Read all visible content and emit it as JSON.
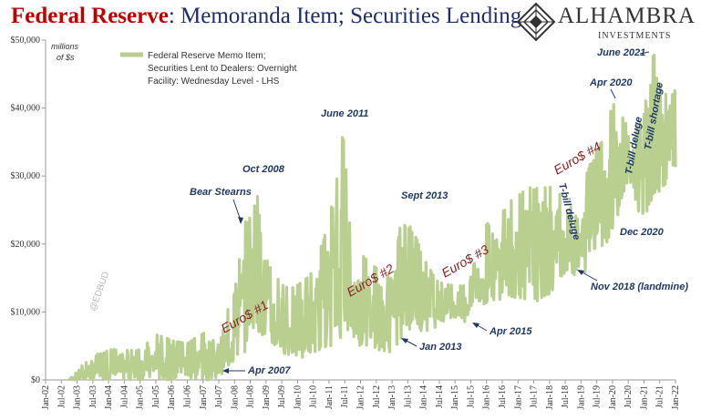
{
  "title": {
    "lead": "Federal Reserve",
    "rest": ": Memoranda Item; Securities Lending"
  },
  "logo": {
    "name": "ALHAMBRA",
    "sub": "INVESTMENTS",
    "icon": "alhambra-diamond-logo"
  },
  "watermark": "@EDBUD",
  "colors": {
    "series": "#b9cf8f",
    "annotation": "#1f3864",
    "euro": "#8b2020",
    "title_lead": "#c00000",
    "title_rest": "#1f2d6e"
  },
  "chart_data": {
    "type": "area",
    "units_label": [
      "millions",
      "of $s"
    ],
    "legend": [
      "Federal Reserve Memo Item;",
      "Securities Lent to Dealers: Overnight",
      "Facility: Wednesday Level - LHS"
    ],
    "x_start": "2002-01",
    "x_end": "2022-01",
    "xlim": [
      2002.0,
      2022.0
    ],
    "ylim": [
      0,
      50000
    ],
    "y_ticks": [
      "$0",
      "$10,000",
      "$20,000",
      "$30,000",
      "$40,000",
      "$50,000"
    ],
    "x_ticks": [
      "Jan-02",
      "Jul-02",
      "Jan-03",
      "Jul-03",
      "Jan-04",
      "Jul-04",
      "Jan-05",
      "Jul-05",
      "Jan-06",
      "Jul-06",
      "Jan-07",
      "Jul-07",
      "Jan-08",
      "Jul-08",
      "Jan-09",
      "Jul-09",
      "Jan-10",
      "Jul-10",
      "Jan-11",
      "Jul-11",
      "Jan-12",
      "Jul-12",
      "Jan-13",
      "Jul-13",
      "Jan-14",
      "Jul-14",
      "Jan-15",
      "Jul-15",
      "Jan-16",
      "Jul-16",
      "Jan-17",
      "Jul-17",
      "Jan-18",
      "Jul-18",
      "Jan-19",
      "Jul-19",
      "Jan-20",
      "Jul-20",
      "Jan-21",
      "Jul-21",
      "Jan-22"
    ],
    "series": [
      {
        "name": "Federal Reserve Memo Item; Securities Lent to Dealers: Overnight Facility: Wednesday Level - LHS",
        "envelope": {
          "x": [
            2002.75,
            2003.0,
            2003.5,
            2004.0,
            2004.5,
            2005.0,
            2005.5,
            2006.0,
            2006.5,
            2007.0,
            2007.25,
            2007.5,
            2008.0,
            2008.3,
            2008.5,
            2008.8,
            2009.0,
            2009.5,
            2010.0,
            2010.5,
            2011.0,
            2011.2,
            2011.45,
            2011.7,
            2012.0,
            2012.5,
            2013.0,
            2013.3,
            2013.7,
            2014.0,
            2014.5,
            2015.0,
            2015.3,
            2015.6,
            2016.0,
            2016.5,
            2017.0,
            2017.5,
            2018.0,
            2018.3,
            2018.6,
            2018.9,
            2019.2,
            2019.5,
            2019.8,
            2020.0,
            2020.3,
            2020.6,
            2020.95,
            2021.2,
            2021.45,
            2021.7,
            2021.9,
            2022.0
          ],
          "high": [
            0,
            1500,
            3500,
            4500,
            4500,
            4500,
            7000,
            6000,
            5500,
            7000,
            5500,
            7000,
            13000,
            23500,
            24000,
            29000,
            18000,
            14000,
            14000,
            16000,
            24000,
            28000,
            37500,
            20000,
            19000,
            17000,
            15000,
            24000,
            22000,
            18000,
            14500,
            14000,
            14000,
            17000,
            23000,
            25000,
            28000,
            28500,
            29000,
            28000,
            26000,
            24000,
            31000,
            34000,
            36000,
            41500,
            39000,
            37000,
            38000,
            47000,
            49000,
            42000,
            45000,
            42000
          ],
          "low": [
            0,
            0,
            0,
            0,
            0,
            0,
            0,
            0,
            0,
            0,
            0,
            500,
            2500,
            3500,
            8000,
            7000,
            5000,
            4000,
            3000,
            4000,
            5000,
            4500,
            7000,
            6000,
            5000,
            4500,
            4000,
            5000,
            8000,
            7000,
            8000,
            9000,
            8000,
            12000,
            11000,
            12000,
            12000,
            11500,
            12000,
            15000,
            16000,
            15000,
            16000,
            19000,
            20000,
            22000,
            26000,
            28000,
            23000,
            26000,
            27000,
            29000,
            30000,
            30000
          ]
        }
      }
    ],
    "annotations": [
      {
        "text": "Bear Stearns",
        "x": 2008.2,
        "y": 23500
      },
      {
        "text": "Oct 2008",
        "x": 2008.8,
        "y": 29000
      },
      {
        "text": "June 2011",
        "x": 2011.45,
        "y": 37500
      },
      {
        "text": "Sept 2013",
        "x": 2013.7,
        "y": 24000
      },
      {
        "text": "Jan 2013",
        "x": 2013.0,
        "y": 5000
      },
      {
        "text": "Apr 2015",
        "x": 2015.3,
        "y": 8000
      },
      {
        "text": "Apr 2007",
        "x": 2007.25,
        "y": 0
      },
      {
        "text": "Nov 2018 (landmine)",
        "x": 2018.85,
        "y": 16000
      },
      {
        "text": "Dec 2020",
        "x": 2020.95,
        "y": 23500
      },
      {
        "text": "Apr 2020",
        "x": 2020.25,
        "y": 41500
      },
      {
        "text": "June 2021",
        "x": 2021.45,
        "y": 49000
      },
      {
        "text": "T-bill deluge",
        "x": 2018.6,
        "y": 23000
      },
      {
        "text": "T-bill deluge",
        "x": 2020.55,
        "y": 33000
      },
      {
        "text": "T-bill shortage",
        "x": 2021.05,
        "y": 36000
      }
    ],
    "euro_labels": [
      "Euro$ #1",
      "Euro$ #2",
      "Euro$ #3",
      "Euro$ #4"
    ]
  }
}
